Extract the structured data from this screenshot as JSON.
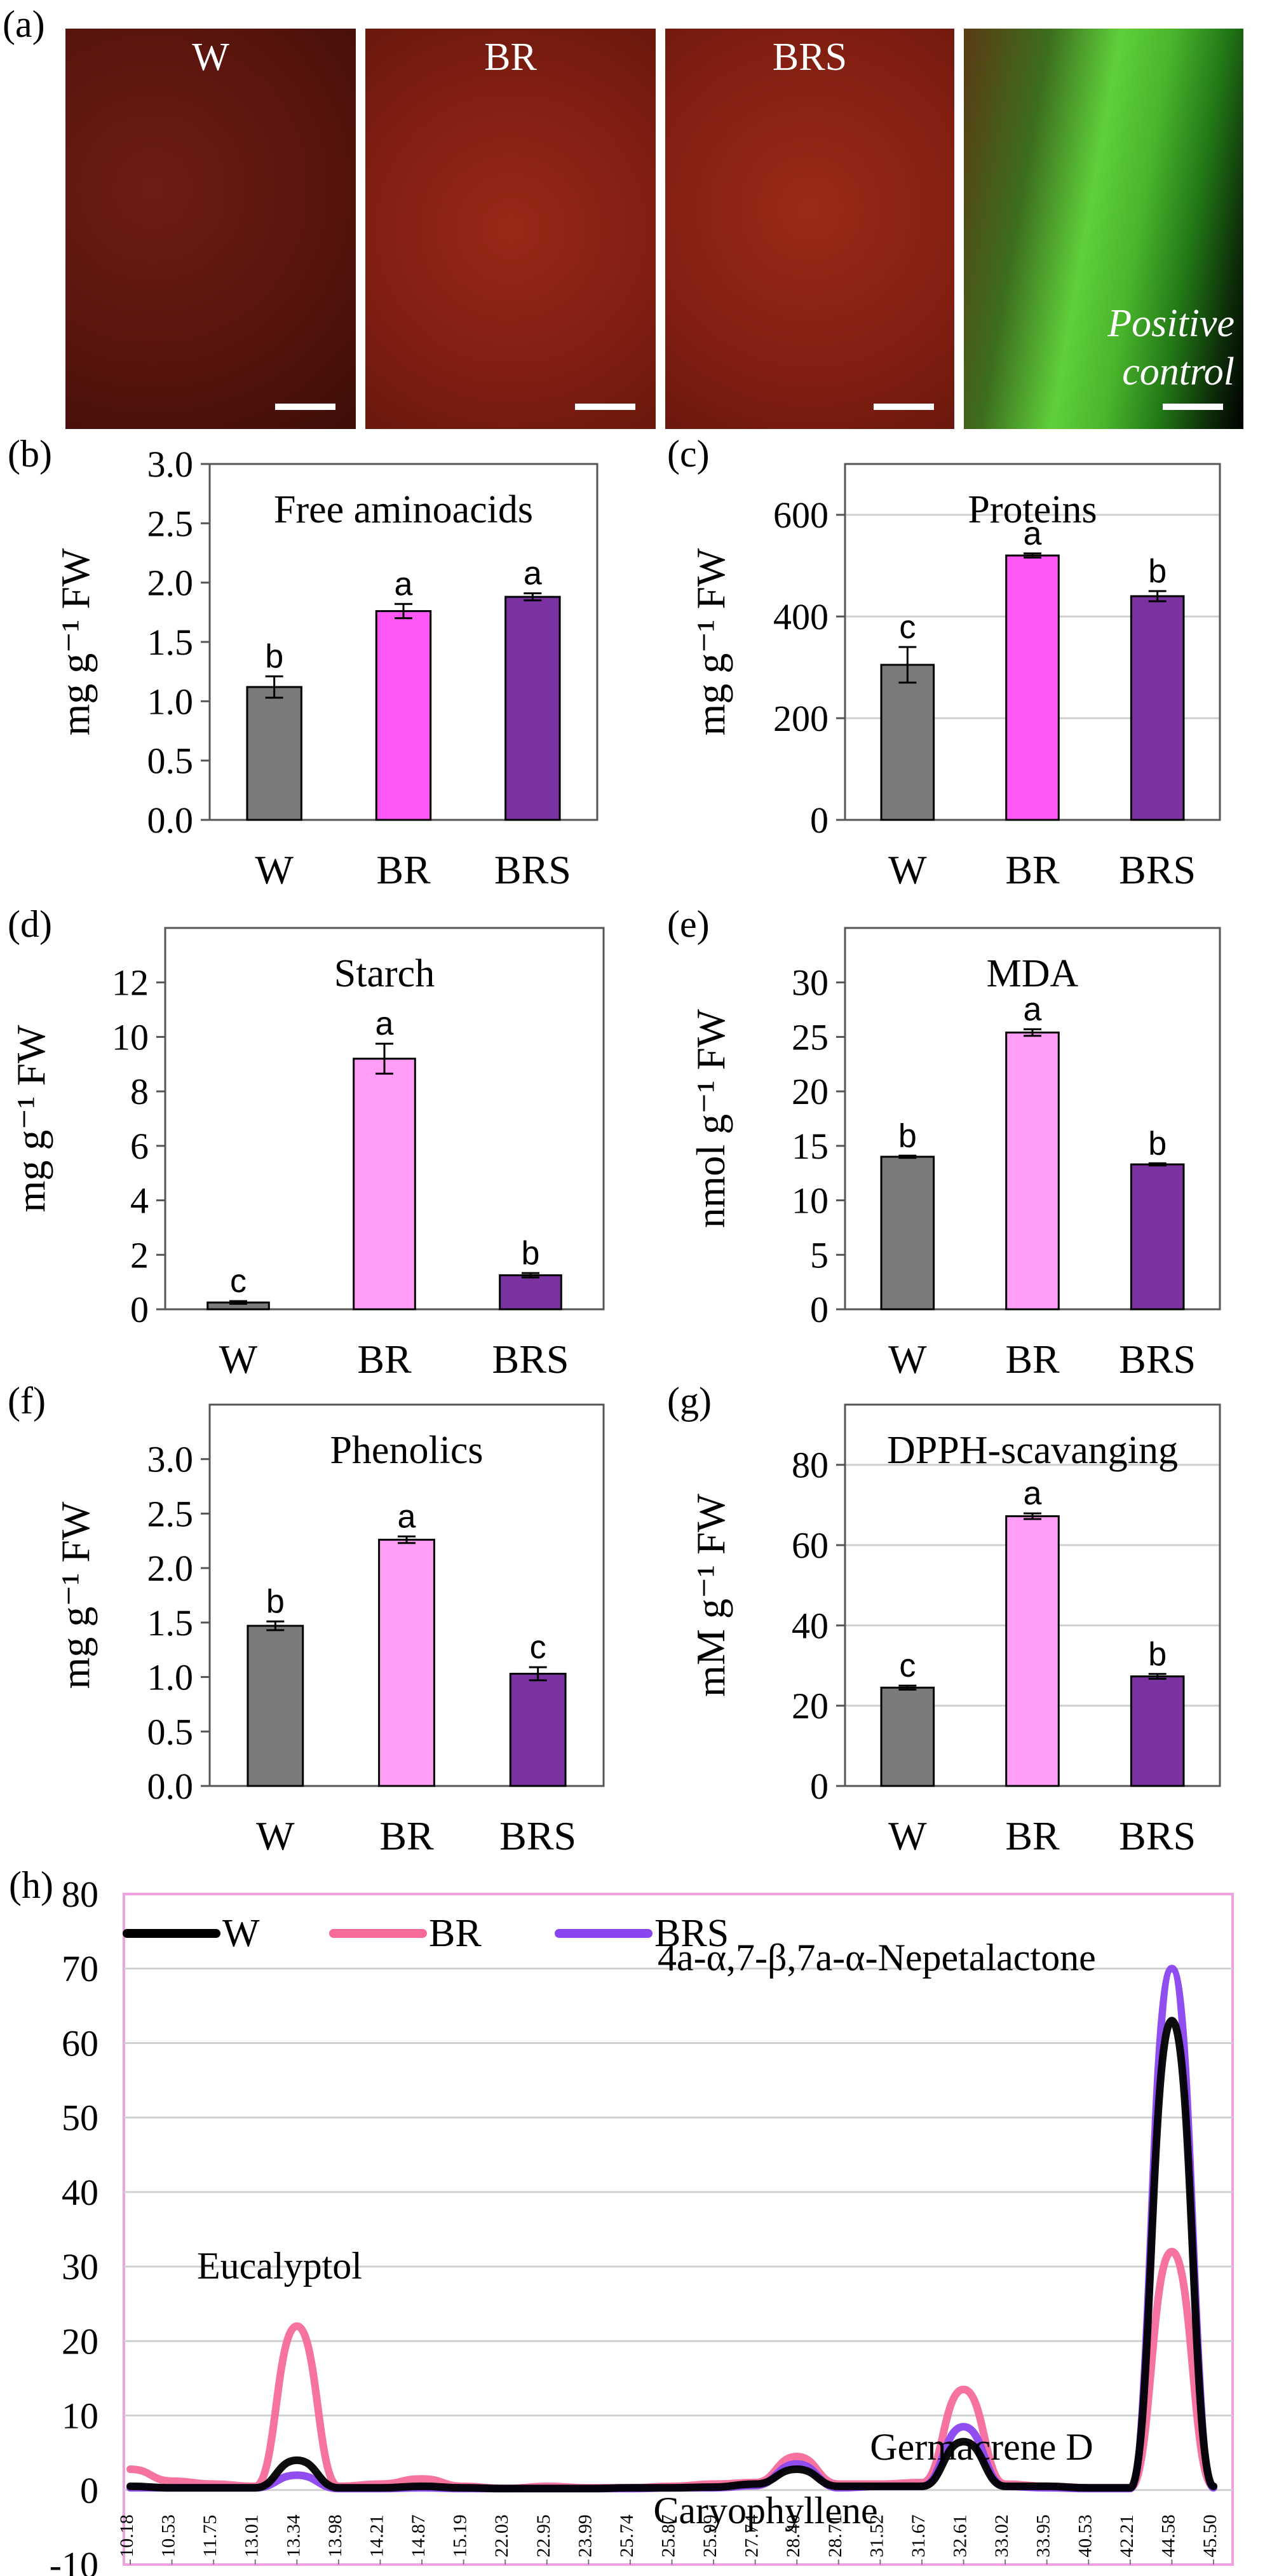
{
  "panel_labels": {
    "a": "(a)",
    "b": "(b)",
    "c": "(c)",
    "d": "(d)",
    "e": "(e)",
    "f": "(f)",
    "g": "(g)",
    "h": "(h)"
  },
  "micrographs": [
    {
      "label": "W"
    },
    {
      "label": "BR"
    },
    {
      "label": "BRS"
    },
    {
      "label_line1": "Positive",
      "label_line2": "control"
    }
  ],
  "colors": {
    "W": "#7a7a7a",
    "BR": "#ff57f5",
    "BR_light": "#ff9df7",
    "BRS": "#7a32a0",
    "grid": "#d0d0d0",
    "frame_h": "#f0a0e0"
  },
  "chart_data": [
    {
      "id": "b",
      "type": "bar",
      "title": "Free aminoacids",
      "ylabel": "mg g⁻¹ FW",
      "categories": [
        "W",
        "BR",
        "BRS"
      ],
      "values": [
        1.12,
        1.76,
        1.88
      ],
      "errors": [
        0.09,
        0.06,
        0.03
      ],
      "letters": [
        "b",
        "a",
        "a"
      ],
      "ylim": [
        0,
        3.0
      ],
      "yticks": [
        "0.0",
        "0.5",
        "1.0",
        "1.5",
        "2.0",
        "2.5",
        "3.0"
      ],
      "grid": false
    },
    {
      "id": "c",
      "type": "bar",
      "title": "Proteins",
      "ylabel": "mg g⁻¹ FW",
      "categories": [
        "W",
        "BR",
        "BRS"
      ],
      "values": [
        305,
        520,
        440
      ],
      "errors": [
        35,
        4,
        10
      ],
      "letters": [
        "c",
        "a",
        "b"
      ],
      "ylim": [
        0,
        700
      ],
      "yticks": [
        "0",
        "200",
        "400",
        "600"
      ],
      "grid": true
    },
    {
      "id": "d",
      "type": "bar",
      "title": "Starch",
      "ylabel": "mg g⁻¹ FW",
      "categories": [
        "W",
        "BR",
        "BRS"
      ],
      "values": [
        0.25,
        9.2,
        1.25
      ],
      "errors": [
        0.05,
        0.55,
        0.08
      ],
      "letters": [
        "c",
        "a",
        "b"
      ],
      "ylim": [
        0,
        14
      ],
      "yticks": [
        "0",
        "2",
        "4",
        "6",
        "8",
        "10",
        "12"
      ],
      "grid": false
    },
    {
      "id": "e",
      "type": "bar",
      "title": "MDA",
      "ylabel": "nmol g⁻¹ FW",
      "categories": [
        "W",
        "BR",
        "BRS"
      ],
      "values": [
        14.0,
        25.4,
        13.3
      ],
      "errors": [
        0.1,
        0.3,
        0.1
      ],
      "letters": [
        "b",
        "a",
        "b"
      ],
      "ylim": [
        0,
        35
      ],
      "yticks": [
        "0",
        "5",
        "10",
        "15",
        "20",
        "25",
        "30"
      ],
      "grid": false
    },
    {
      "id": "f",
      "type": "bar",
      "title": "Phenolics",
      "ylabel": "mg g⁻¹ FW",
      "categories": [
        "W",
        "BR",
        "BRS"
      ],
      "values": [
        1.47,
        2.26,
        1.03
      ],
      "errors": [
        0.04,
        0.03,
        0.06
      ],
      "letters": [
        "b",
        "a",
        "c"
      ],
      "ylim": [
        0,
        3.5
      ],
      "yticks": [
        "0.0",
        "0.5",
        "1.0",
        "1.5",
        "2.0",
        "2.5",
        "3.0"
      ],
      "grid": false
    },
    {
      "id": "g",
      "type": "bar",
      "title": "DPPH-scavanging",
      "ylabel": "mM g⁻¹ FW",
      "categories": [
        "W",
        "BR",
        "BRS"
      ],
      "values": [
        24.5,
        67.2,
        27.3
      ],
      "errors": [
        0.5,
        0.7,
        0.6
      ],
      "letters": [
        "c",
        "a",
        "b"
      ],
      "ylim": [
        0,
        95
      ],
      "yticks": [
        "0",
        "20",
        "40",
        "60",
        "80"
      ],
      "grid": true
    },
    {
      "id": "h",
      "type": "line",
      "ylim": [
        -10,
        80
      ],
      "yticks": [
        "-10",
        "0",
        "10",
        "20",
        "30",
        "40",
        "50",
        "60",
        "70",
        "80"
      ],
      "x": [
        "10.18",
        "10.53",
        "11.75",
        "13.01",
        "13.34",
        "13.98",
        "14.21",
        "14.87",
        "15.19",
        "22.03",
        "22.95",
        "23.99",
        "25.74",
        "25.87",
        "25.99",
        "27.74",
        "28.40",
        "28.71",
        "31.52",
        "31.67",
        "32.61",
        "33.02",
        "33.95",
        "40.53",
        "42.21",
        "44.58",
        "45.50"
      ],
      "series": [
        {
          "name": "W",
          "values": [
            0.5,
            0.3,
            0.3,
            0.3,
            4.0,
            0.3,
            0.3,
            0.5,
            0.3,
            0.2,
            0.2,
            0.2,
            0.3,
            0.3,
            0.4,
            0.8,
            2.8,
            0.5,
            0.5,
            0.5,
            6.5,
            0.5,
            0.5,
            0.3,
            0.3,
            63.0,
            0.5
          ]
        },
        {
          "name": "BR",
          "values": [
            2.8,
            1.2,
            0.8,
            0.5,
            22.0,
            0.5,
            0.8,
            1.5,
            0.5,
            0.2,
            0.5,
            0.3,
            0.3,
            0.5,
            0.8,
            1.0,
            4.5,
            0.8,
            0.8,
            1.0,
            13.5,
            0.8,
            0.5,
            0.3,
            0.3,
            32.0,
            0.5
          ]
        },
        {
          "name": "BRS",
          "values": [
            0.3,
            0.3,
            0.3,
            0.3,
            2.0,
            0.2,
            0.2,
            0.3,
            0.2,
            0.2,
            0.2,
            0.2,
            0.2,
            0.3,
            0.3,
            0.6,
            3.5,
            0.3,
            0.5,
            0.5,
            8.5,
            0.5,
            0.3,
            0.2,
            0.2,
            70.0,
            0.3
          ]
        }
      ],
      "annotations": [
        "Eucalyptol",
        "Caryophyllene",
        "Germacrene D",
        "4a-α,7-β,7a-α-Nepetalactone"
      ]
    }
  ]
}
